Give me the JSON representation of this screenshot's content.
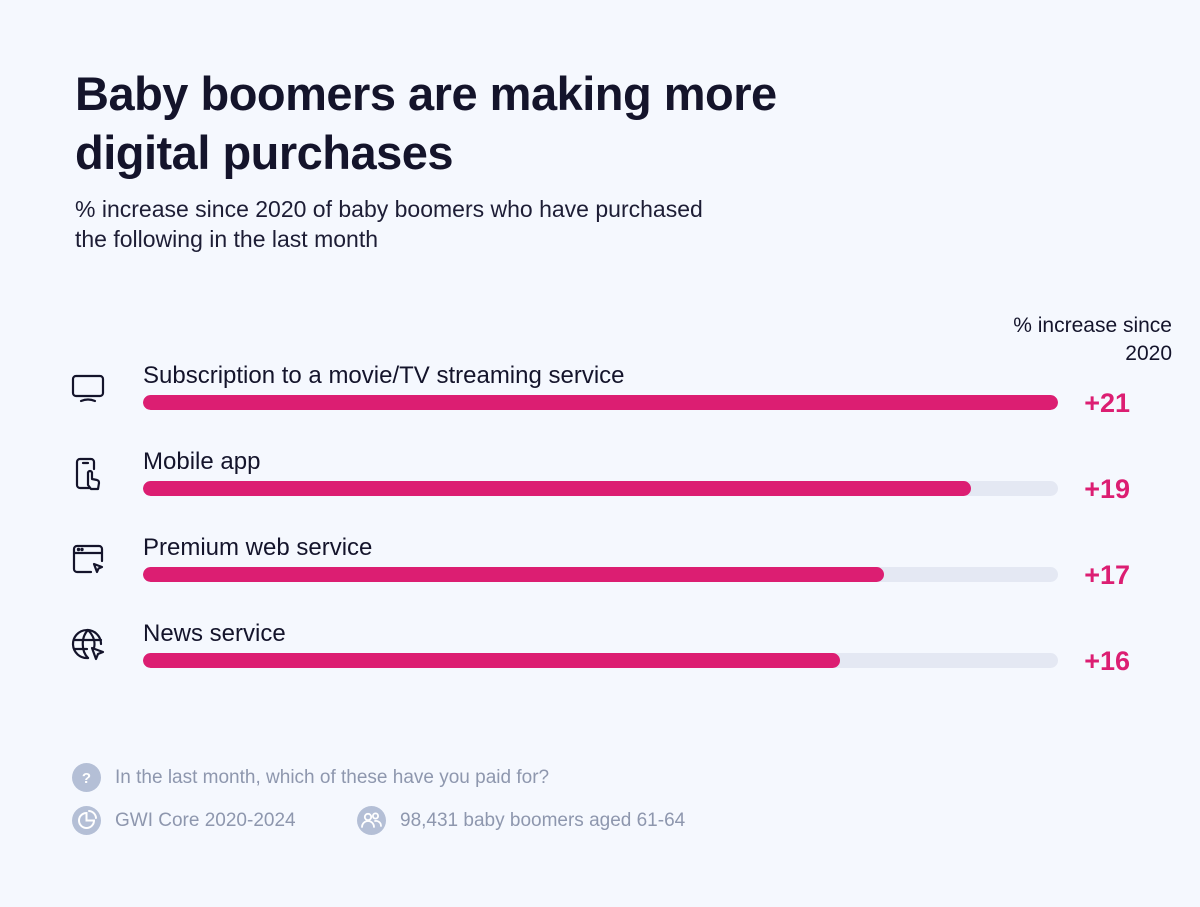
{
  "title": "Baby boomers are making more digital purchases",
  "subtitle": "% increase since 2020 of baby boomers who have purchased the following in the last month",
  "colors": {
    "accent": "#dc1e72",
    "track": "#e4e8f3",
    "muted": "#8e97ae",
    "background": "#f5f8fe"
  },
  "chart_data": {
    "type": "bar",
    "orientation": "horizontal",
    "value_header": "% increase since 2020",
    "max_value": 21,
    "categories": [
      "Subscription to a movie/TV streaming service",
      "Mobile app",
      "Premium web service",
      "News service"
    ],
    "values": [
      21,
      19,
      17,
      16
    ],
    "value_labels": [
      "+21",
      "+19",
      "+17",
      "+16"
    ],
    "icons": [
      "tv-icon",
      "mobile-touch-icon",
      "browser-cursor-icon",
      "globe-cursor-icon"
    ]
  },
  "footer": {
    "question": "In the last month, which of these have you paid for?",
    "source": "GWI Core 2020-2024",
    "sample": "98,431 baby boomers aged 61-64",
    "icons": [
      "question-icon",
      "source-chart-icon",
      "people-icon"
    ]
  }
}
